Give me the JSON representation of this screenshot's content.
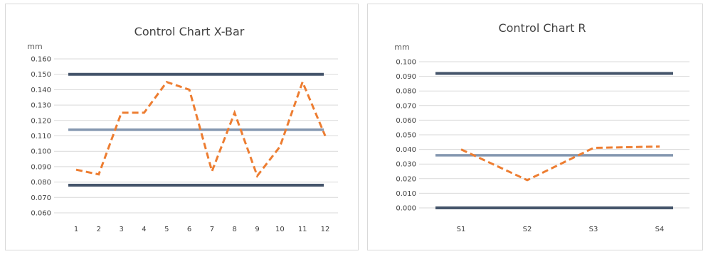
{
  "chart_data": [
    {
      "type": "line",
      "title": "Control Chart X-Bar",
      "ylabel": "mm",
      "categories": [
        "1",
        "2",
        "3",
        "4",
        "5",
        "6",
        "7",
        "8",
        "9",
        "10",
        "11",
        "12"
      ],
      "y_ticks": [
        "0.060",
        "0.070",
        "0.080",
        "0.090",
        "0.100",
        "0.110",
        "0.120",
        "0.130",
        "0.140",
        "0.150",
        "0.160"
      ],
      "ylim": [
        0.06,
        0.16
      ],
      "grid": true,
      "series": [
        {
          "role": "upper-limit",
          "values": [
            0.15,
            0.15,
            0.15,
            0.15,
            0.15,
            0.15,
            0.15,
            0.15,
            0.15,
            0.15,
            0.15,
            0.15
          ],
          "color": "#44546a"
        },
        {
          "role": "center-line",
          "values": [
            0.114,
            0.114,
            0.114,
            0.114,
            0.114,
            0.114,
            0.114,
            0.114,
            0.114,
            0.114,
            0.114,
            0.114
          ],
          "color": "#8497b0"
        },
        {
          "role": "lower-limit",
          "values": [
            0.078,
            0.078,
            0.078,
            0.078,
            0.078,
            0.078,
            0.078,
            0.078,
            0.078,
            0.078,
            0.078,
            0.078
          ],
          "color": "#44546a"
        },
        {
          "role": "data",
          "values": [
            0.088,
            0.085,
            0.125,
            0.125,
            0.145,
            0.14,
            0.087,
            0.125,
            0.084,
            0.103,
            0.145,
            0.11
          ],
          "color": "#ed7d31",
          "dashed": true
        }
      ]
    },
    {
      "type": "line",
      "title": "Control Chart  R",
      "ylabel": "mm",
      "categories": [
        "S1",
        "S2",
        "S3",
        "S4"
      ],
      "y_ticks": [
        "0.000",
        "0.010",
        "0.020",
        "0.030",
        "0.040",
        "0.050",
        "0.060",
        "0.070",
        "0.080",
        "0.090",
        "0.100"
      ],
      "ylim": [
        0,
        0.1
      ],
      "grid": true,
      "series": [
        {
          "role": "upper-limit",
          "values": [
            0.092,
            0.092,
            0.092,
            0.092
          ],
          "color": "#44546a"
        },
        {
          "role": "center-line",
          "values": [
            0.036,
            0.036,
            0.036,
            0.036
          ],
          "color": "#8497b0"
        },
        {
          "role": "lower-limit",
          "values": [
            0.0,
            0.0,
            0.0,
            0.0
          ],
          "color": "#44546a"
        },
        {
          "role": "data",
          "values": [
            0.04,
            0.019,
            0.041,
            0.042
          ],
          "color": "#ed7d31",
          "dashed": true
        }
      ]
    }
  ]
}
